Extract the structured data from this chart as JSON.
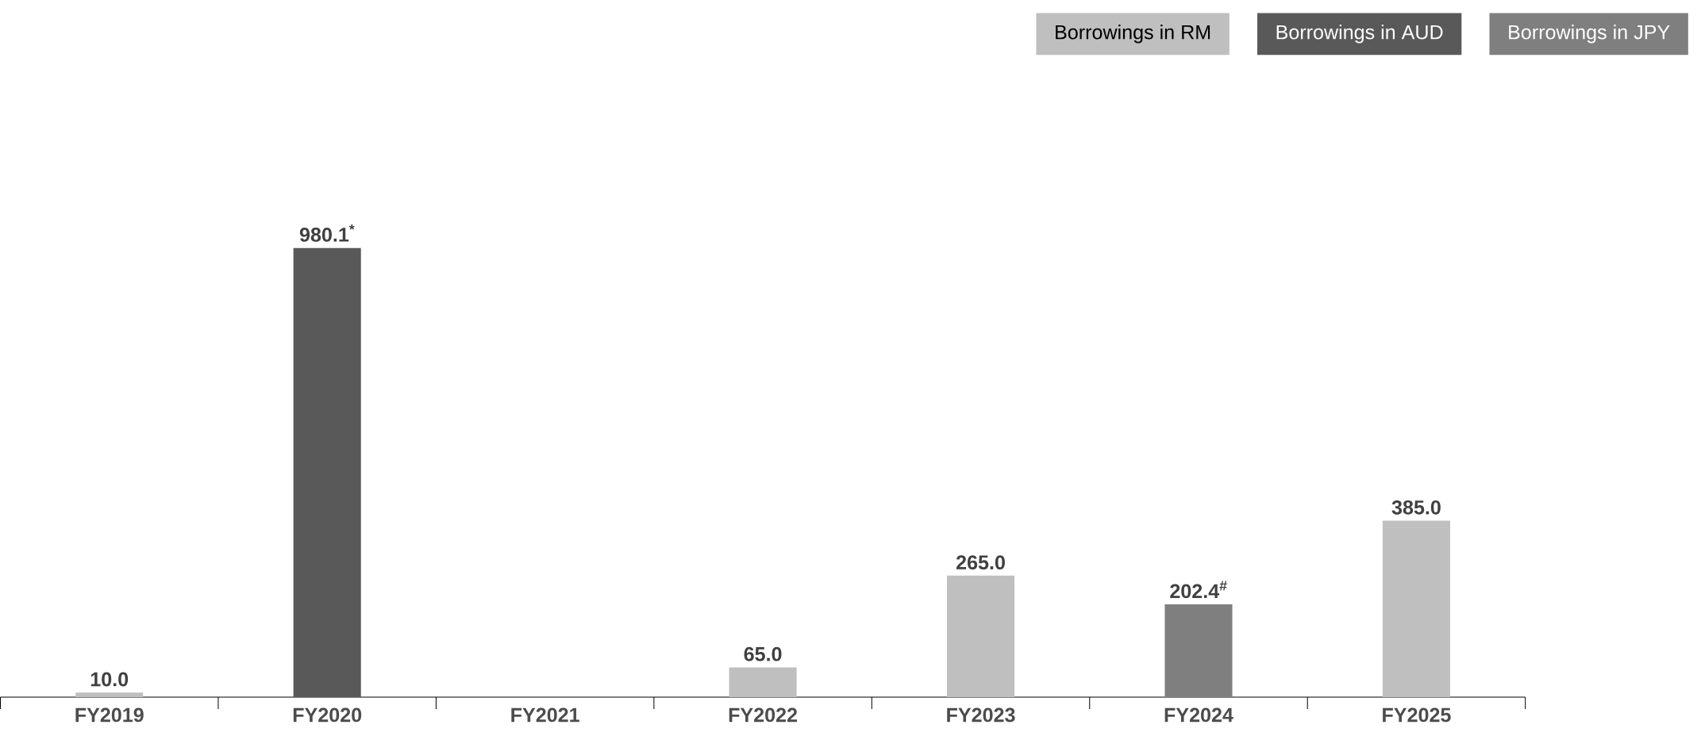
{
  "chart_data": {
    "type": "bar",
    "categories": [
      "FY2019",
      "FY2020",
      "FY2021",
      "FY2022",
      "FY2023",
      "FY2024",
      "FY2025"
    ],
    "series": [
      {
        "name": "Borrowings in RM",
        "color": "#bfbfbf",
        "values": [
          10.0,
          null,
          null,
          65.0,
          265.0,
          null,
          385.0
        ],
        "value_labels": [
          "10.0",
          null,
          null,
          "65.0",
          "265.0",
          null,
          "385.0"
        ]
      },
      {
        "name": "Borrowings in AUD",
        "color": "#595959",
        "values": [
          null,
          980.1,
          null,
          null,
          null,
          null,
          null
        ],
        "value_labels": [
          null,
          "980.1$^{*}$",
          null,
          null,
          null,
          null,
          null
        ]
      },
      {
        "name": "Borrowings in JPY",
        "color": "#7f7f7f",
        "values": [
          null,
          null,
          null,
          null,
          null,
          202.4,
          null
        ],
        "value_labels": [
          null,
          null,
          null,
          null,
          null,
          "202.4$^{#}$",
          null
        ]
      }
    ],
    "legend": "top right"
  }
}
